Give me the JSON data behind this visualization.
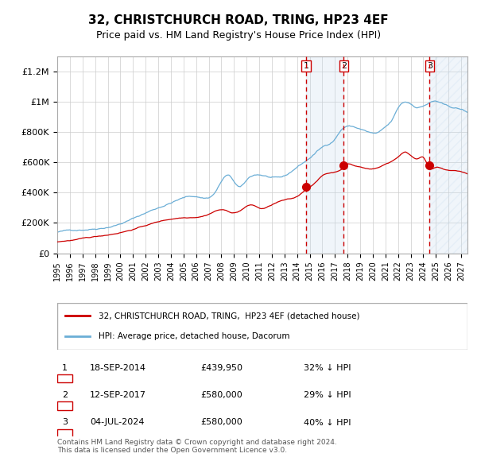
{
  "title": "32, CHRISTCHURCH ROAD, TRING, HP23 4EF",
  "subtitle": "Price paid vs. HM Land Registry's House Price Index (HPI)",
  "title_fontsize": 11,
  "subtitle_fontsize": 9,
  "ylabel_ticks": [
    "£0",
    "£200K",
    "£400K",
    "£600K",
    "£800K",
    "£1M",
    "£1.2M"
  ],
  "ytick_values": [
    0,
    200000,
    400000,
    600000,
    800000,
    1000000,
    1200000
  ],
  "ylim": [
    0,
    1300000
  ],
  "xlim_start": 1995.0,
  "xlim_end": 2027.5,
  "hpi_color": "#6baed6",
  "price_color": "#cc0000",
  "transaction_color": "#cc0000",
  "vline_color": "#cc0000",
  "shade_color": "#c6dbef",
  "hatch_color": "#c6dbef",
  "transactions": [
    {
      "id": 1,
      "date_x": 2014.71,
      "price": 439950,
      "label": "18-SEP-2014",
      "pct": "32%"
    },
    {
      "id": 2,
      "date_x": 2017.7,
      "price": 580000,
      "label": "12-SEP-2017",
      "pct": "29%"
    },
    {
      "id": 3,
      "date_x": 2024.5,
      "price": 580000,
      "label": "04-JUL-2024",
      "pct": "40%"
    }
  ],
  "legend_entries": [
    {
      "label": "32, CHRISTCHURCH ROAD, TRING,  HP23 4EF (detached house)",
      "color": "#cc0000"
    },
    {
      "label": "HPI: Average price, detached house, Dacorum",
      "color": "#6baed6"
    }
  ],
  "footnote": "Contains HM Land Registry data © Crown copyright and database right 2024.\nThis data is licensed under the Open Government Licence v3.0.",
  "table_rows": [
    [
      "1",
      "18-SEP-2014",
      "£439,950",
      "32% ↓ HPI"
    ],
    [
      "2",
      "12-SEP-2017",
      "£580,000",
      "29% ↓ HPI"
    ],
    [
      "3",
      "04-JUL-2024",
      "£580,000",
      "40% ↓ HPI"
    ]
  ]
}
